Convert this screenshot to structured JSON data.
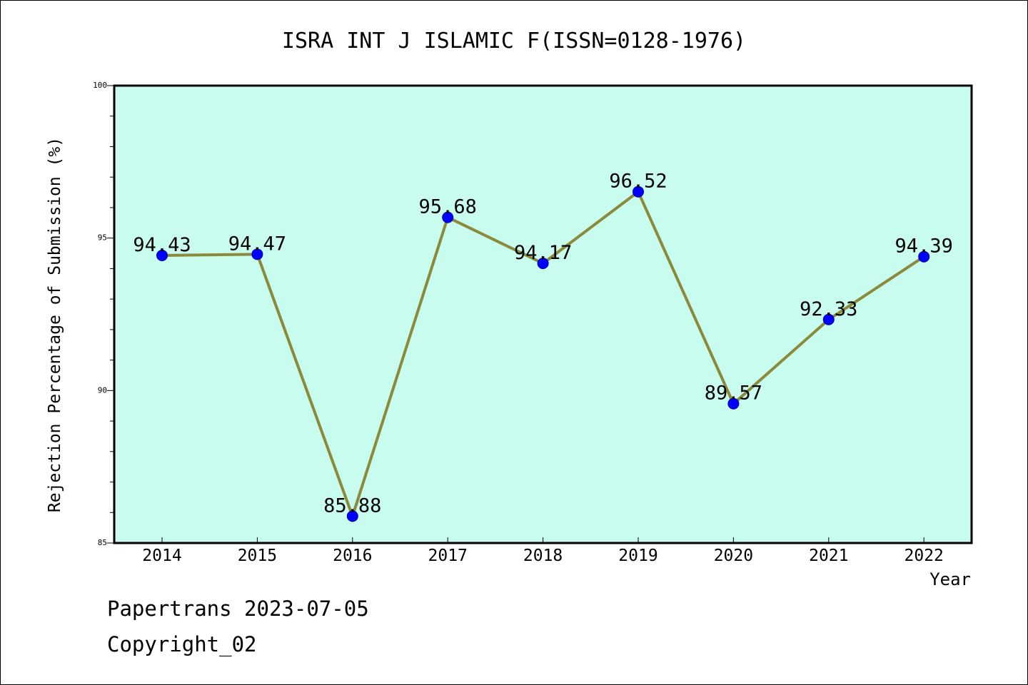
{
  "chart_data": {
    "type": "line",
    "title": "ISRA INT J ISLAMIC F(ISSN=0128-1976)",
    "xlabel": "Year",
    "ylabel": "Rejection Percentage of Submission (%)",
    "categories": [
      "2014",
      "2015",
      "2016",
      "2017",
      "2018",
      "2019",
      "2020",
      "2021",
      "2022"
    ],
    "values": [
      94.43,
      94.47,
      85.88,
      95.68,
      94.17,
      96.52,
      89.57,
      92.33,
      94.39
    ],
    "value_labels": [
      "94.43",
      "94.47",
      "85.88",
      "95.68",
      "94.17",
      "96.52",
      "89.57",
      "92.33",
      "94.39"
    ],
    "ylim": [
      85,
      100
    ],
    "yticks": [
      85,
      90,
      95,
      100
    ],
    "ytick_labels": [
      "85",
      "90",
      "95",
      "100"
    ],
    "grid": false,
    "line_color": "#8b8a3a",
    "marker_color": "#0000ff",
    "plot_background": "#c8fcee"
  },
  "footer": {
    "line1": "Papertrans 2023-07-05",
    "line2": "Copyright_02"
  }
}
